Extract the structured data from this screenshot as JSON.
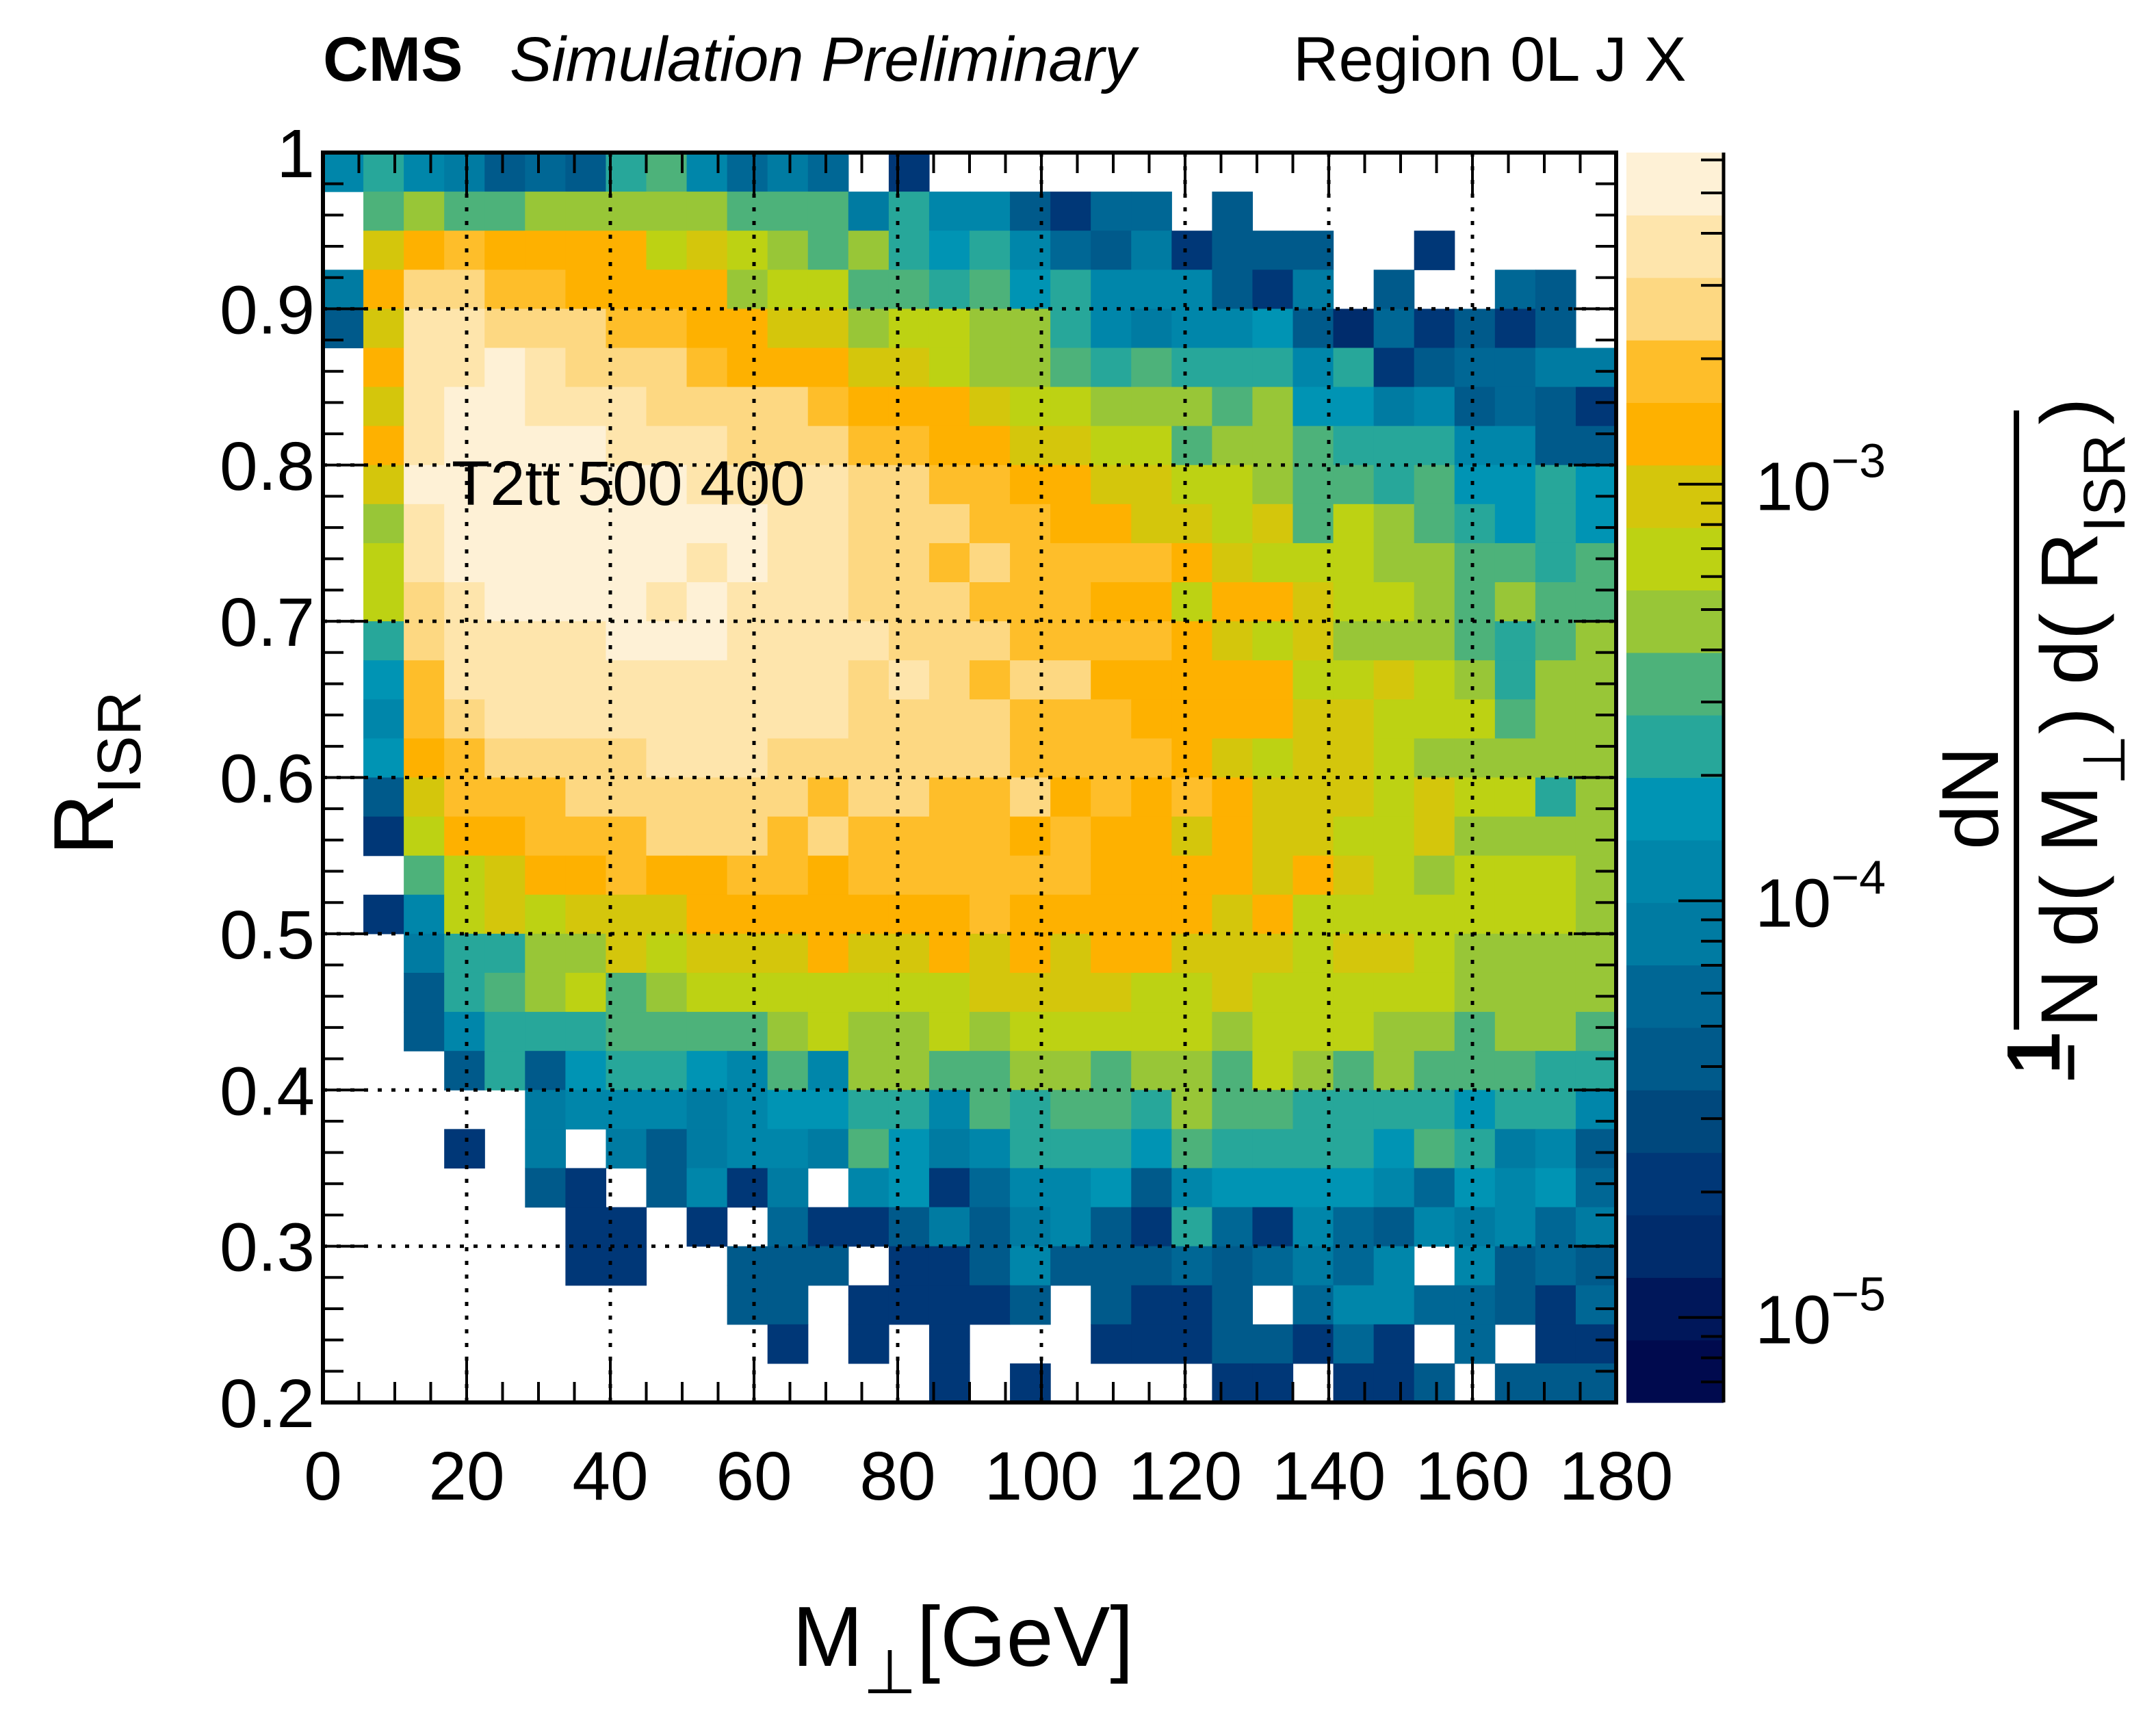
{
  "chart_data": {
    "type": "heatmap",
    "header": {
      "experiment": "CMS",
      "status": "Simulation Preliminary",
      "region": "Region 0L J X"
    },
    "annotation": "T2tt 500 400",
    "xlabel": {
      "main": "M",
      "sub": "⊥",
      "unit": "[GeV]"
    },
    "ylabel": {
      "main": "R",
      "sub": "ISR"
    },
    "zlabel": {
      "numerator": "dN",
      "one": "1",
      "denominator_parts": [
        "N d( M",
        "⊥",
        ") d( R",
        "ISR",
        ")"
      ]
    },
    "xlim": [
      0,
      180
    ],
    "ylim": [
      0.2,
      1.0
    ],
    "zlim": [
      6.25e-06,
      0.00625
    ],
    "zscale": "log",
    "x_ticks": [
      0,
      20,
      40,
      60,
      80,
      100,
      120,
      140,
      160,
      180
    ],
    "x_tick_labels": [
      "0",
      "20",
      "40",
      "60",
      "80",
      "100",
      "120",
      "140",
      "160",
      "180"
    ],
    "y_ticks": [
      0.2,
      0.3,
      0.4,
      0.5,
      0.6,
      0.7,
      0.8,
      0.9,
      1.0
    ],
    "y_tick_labels": [
      "0.2",
      "0.3",
      "0.4",
      "0.5",
      "0.6",
      "0.7",
      "0.8",
      "0.9",
      "1"
    ],
    "z_ticks": [
      1e-05,
      0.0001,
      0.001
    ],
    "z_tick_labels": [
      {
        "base": "10",
        "exp": "−5"
      },
      {
        "base": "10",
        "exp": "−4"
      },
      {
        "base": "10",
        "exp": "−3"
      }
    ],
    "grid": true,
    "grid_style": "dotted",
    "nbins_x": 32,
    "nbins_y": 32,
    "palette": [
      "#000A4E",
      "#00175A",
      "#002C6C",
      "#003777",
      "#00487D",
      "#005A8B",
      "#006795",
      "#007BA2",
      "#0086AA",
      "#0094B4",
      "#27A79A",
      "#4DB27A",
      "#98C637",
      "#BDD213",
      "#D4C60C",
      "#FEB100",
      "#FEBE2A",
      "#FDD882",
      "#FEE5AC",
      "#FEF1D6"
    ],
    "z_rows_top_to_bottom": [
      [
        0.000118,
        0.000235,
        0.000118,
        8.35e-05,
        4.18e-05,
        5.91e-05,
        4.18e-05,
        0.000235,
        0.000332,
        0.000118,
        5.91e-05,
        8.35e-05,
        5.91e-05,
        null,
        2.1e-05,
        null,
        null,
        null,
        null,
        null,
        null,
        null,
        null,
        null,
        null,
        null,
        null,
        null,
        null,
        null,
        null,
        null
      ],
      [
        null,
        0.000332,
        0.000469,
        0.000332,
        0.000332,
        0.000469,
        0.000469,
        0.000469,
        0.000469,
        0.000469,
        0.000332,
        0.000332,
        0.000332,
        8.35e-05,
        0.000235,
        0.000118,
        0.000118,
        4.18e-05,
        2.1e-05,
        5.91e-05,
        5.91e-05,
        null,
        4.18e-05,
        null,
        null,
        null,
        null,
        null,
        null,
        null,
        null,
        null
      ],
      [
        null,
        0.000937,
        0.00132,
        0.00187,
        0.00132,
        0.00132,
        0.00132,
        0.00132,
        0.000663,
        0.000937,
        0.000663,
        0.000469,
        0.000332,
        0.000469,
        0.000235,
        0.000167,
        0.000235,
        0.000118,
        5.91e-05,
        4.18e-05,
        8.35e-05,
        2.1e-05,
        4.18e-05,
        4.18e-05,
        4.18e-05,
        null,
        null,
        2.1e-05,
        null,
        null,
        null,
        null
      ],
      [
        8.35e-05,
        0.00132,
        0.00264,
        0.00264,
        0.00187,
        0.00187,
        0.00132,
        0.00132,
        0.00132,
        0.00132,
        0.000469,
        0.000663,
        0.000663,
        0.000332,
        0.000332,
        0.000235,
        0.000332,
        0.000167,
        0.000235,
        0.000118,
        0.000118,
        0.000118,
        4.18e-05,
        2.1e-05,
        8.35e-05,
        null,
        4.18e-05,
        null,
        null,
        5.91e-05,
        4.18e-05,
        null
      ],
      [
        4.18e-05,
        0.000937,
        0.00373,
        0.00373,
        0.00264,
        0.00264,
        0.00264,
        0.00187,
        0.00187,
        0.00132,
        0.00132,
        0.000937,
        0.000937,
        0.000469,
        0.000663,
        0.000663,
        0.000469,
        0.000469,
        0.000235,
        0.000118,
        8.35e-05,
        0.000118,
        0.000118,
        0.000167,
        4.18e-05,
        1.48e-05,
        5.91e-05,
        2.1e-05,
        4.18e-05,
        2.1e-05,
        4.18e-05,
        null
      ],
      [
        null,
        0.00132,
        0.00373,
        0.00373,
        0.00527,
        0.00373,
        0.00264,
        0.00264,
        0.00264,
        0.00187,
        0.00132,
        0.00132,
        0.00132,
        0.000937,
        0.000937,
        0.000663,
        0.000469,
        0.000469,
        0.000332,
        0.000235,
        0.000332,
        0.000235,
        0.000235,
        0.000235,
        0.000118,
        0.000235,
        2.1e-05,
        4.18e-05,
        5.91e-05,
        5.91e-05,
        8.35e-05,
        8.35e-05
      ],
      [
        null,
        0.000937,
        0.00373,
        0.00527,
        0.00527,
        0.00373,
        0.00373,
        0.00373,
        0.00264,
        0.00264,
        0.00264,
        0.00264,
        0.00187,
        0.00132,
        0.00132,
        0.00132,
        0.000937,
        0.000663,
        0.000663,
        0.000469,
        0.000469,
        0.000469,
        0.000332,
        0.000469,
        0.000167,
        0.000167,
        8.35e-05,
        0.000118,
        4.18e-05,
        5.91e-05,
        4.18e-05,
        2.1e-05
      ],
      [
        null,
        0.00132,
        0.00373,
        0.00527,
        0.00527,
        0.00527,
        0.00527,
        0.00373,
        0.00373,
        0.00373,
        0.00264,
        0.00264,
        0.00264,
        0.00187,
        0.00187,
        0.00132,
        0.00132,
        0.000937,
        0.000937,
        0.000663,
        0.000663,
        0.000332,
        0.000469,
        0.000469,
        0.000332,
        0.000235,
        0.000235,
        0.000235,
        0.000118,
        0.000118,
        4.18e-05,
        4.18e-05
      ],
      [
        null,
        0.000937,
        0.00527,
        0.00527,
        0.00527,
        0.00527,
        0.00527,
        0.00527,
        0.00527,
        0.00373,
        0.00373,
        0.00373,
        0.00373,
        0.00264,
        0.00264,
        0.00187,
        0.00187,
        0.00132,
        0.00132,
        0.000937,
        0.000937,
        0.000663,
        0.000663,
        0.000469,
        0.000332,
        0.000332,
        0.000235,
        0.000332,
        0.000167,
        0.000167,
        0.000235,
        0.000167
      ],
      [
        null,
        0.000469,
        0.00373,
        0.00527,
        0.00527,
        0.00527,
        0.00527,
        0.00527,
        0.00527,
        0.00527,
        0.00527,
        0.00373,
        0.00373,
        0.00264,
        0.00264,
        0.00264,
        0.00187,
        0.00187,
        0.00132,
        0.00132,
        0.000937,
        0.000937,
        0.000663,
        0.000937,
        0.000332,
        0.000663,
        0.000469,
        0.000332,
        0.000235,
        0.000167,
        0.000235,
        0.000167
      ],
      [
        null,
        0.000663,
        0.00373,
        0.00527,
        0.00527,
        0.00527,
        0.00527,
        0.00527,
        0.00527,
        0.00373,
        0.00527,
        0.00373,
        0.00373,
        0.00264,
        0.00264,
        0.00187,
        0.00264,
        0.00187,
        0.00187,
        0.00187,
        0.00187,
        0.00132,
        0.000937,
        0.000663,
        0.000663,
        0.000663,
        0.000469,
        0.000469,
        0.000332,
        0.000332,
        0.000235,
        0.000332
      ],
      [
        null,
        0.000663,
        0.00264,
        0.00373,
        0.00527,
        0.00527,
        0.00527,
        0.00527,
        0.00373,
        0.00527,
        0.00373,
        0.00373,
        0.00373,
        0.00264,
        0.00264,
        0.00264,
        0.00187,
        0.00187,
        0.00187,
        0.00132,
        0.00132,
        0.000663,
        0.00132,
        0.00132,
        0.000937,
        0.000663,
        0.000663,
        0.000469,
        0.000332,
        0.000469,
        0.000332,
        0.000332
      ],
      [
        null,
        0.000235,
        0.00264,
        0.00373,
        0.00373,
        0.00373,
        0.00373,
        0.00527,
        0.00527,
        0.00527,
        0.00373,
        0.00373,
        0.00373,
        0.00373,
        0.00264,
        0.00264,
        0.00264,
        0.00187,
        0.00187,
        0.00187,
        0.00187,
        0.00132,
        0.000937,
        0.000663,
        0.000937,
        0.000469,
        0.000469,
        0.000469,
        0.000332,
        0.000235,
        0.000332,
        0.000469
      ],
      [
        null,
        0.000167,
        0.00187,
        0.00373,
        0.00373,
        0.00373,
        0.00373,
        0.00373,
        0.00373,
        0.00373,
        0.00373,
        0.00373,
        0.00373,
        0.00264,
        0.00373,
        0.00264,
        0.00187,
        0.00264,
        0.00264,
        0.00132,
        0.00132,
        0.00132,
        0.00132,
        0.00132,
        0.000663,
        0.000663,
        0.000937,
        0.000663,
        0.000469,
        0.000235,
        0.000469,
        0.000469
      ],
      [
        null,
        0.000118,
        0.00187,
        0.00264,
        0.00373,
        0.00373,
        0.00373,
        0.00373,
        0.00373,
        0.00373,
        0.00373,
        0.00373,
        0.00373,
        0.00264,
        0.00264,
        0.00264,
        0.00264,
        0.00187,
        0.00187,
        0.00187,
        0.00132,
        0.00132,
        0.00132,
        0.00132,
        0.000937,
        0.000937,
        0.000663,
        0.000663,
        0.000663,
        0.000332,
        0.000469,
        0.000469
      ],
      [
        null,
        0.000167,
        0.00132,
        0.00187,
        0.00264,
        0.00264,
        0.00264,
        0.00264,
        0.00373,
        0.00373,
        0.00373,
        0.00264,
        0.00264,
        0.00264,
        0.00264,
        0.00264,
        0.00264,
        0.00187,
        0.00187,
        0.00187,
        0.00187,
        0.00132,
        0.000937,
        0.000663,
        0.000937,
        0.000937,
        0.000663,
        0.000469,
        0.000469,
        0.000469,
        0.000469,
        0.000469
      ],
      [
        null,
        4.18e-05,
        0.000937,
        0.00187,
        0.00187,
        0.00187,
        0.00264,
        0.00264,
        0.00264,
        0.00264,
        0.00264,
        0.00264,
        0.00187,
        0.00264,
        0.00264,
        0.00187,
        0.00187,
        0.00264,
        0.00132,
        0.00187,
        0.00132,
        0.00187,
        0.00132,
        0.000937,
        0.000937,
        0.000937,
        0.000663,
        0.000937,
        0.000663,
        0.000663,
        0.000235,
        0.000469
      ],
      [
        null,
        2.1e-05,
        0.000663,
        0.00132,
        0.00132,
        0.00187,
        0.00187,
        0.00187,
        0.00264,
        0.00264,
        0.00264,
        0.00187,
        0.00264,
        0.00187,
        0.00187,
        0.00187,
        0.00187,
        0.00132,
        0.00187,
        0.00132,
        0.00132,
        0.000937,
        0.00132,
        0.000937,
        0.000937,
        0.000663,
        0.000663,
        0.000937,
        0.000469,
        0.000469,
        0.000469,
        0.000469
      ],
      [
        null,
        null,
        0.000332,
        0.000663,
        0.000937,
        0.00132,
        0.00132,
        0.00187,
        0.00132,
        0.00132,
        0.00187,
        0.00187,
        0.00132,
        0.00187,
        0.00187,
        0.00187,
        0.00187,
        0.00187,
        0.00187,
        0.00132,
        0.00132,
        0.00132,
        0.00132,
        0.000937,
        0.00132,
        0.000937,
        0.000663,
        0.000469,
        0.000663,
        0.000663,
        0.000663,
        0.000469
      ],
      [
        null,
        2.1e-05,
        0.000118,
        0.000663,
        0.000937,
        0.000663,
        0.000937,
        0.000937,
        0.000937,
        0.00132,
        0.00132,
        0.00132,
        0.00132,
        0.00132,
        0.00132,
        0.00132,
        0.00187,
        0.00132,
        0.00132,
        0.00132,
        0.00132,
        0.00132,
        0.000937,
        0.00132,
        0.000663,
        0.000663,
        0.000663,
        0.000663,
        0.000663,
        0.000663,
        0.000663,
        0.000469
      ],
      [
        null,
        null,
        8.35e-05,
        0.000235,
        0.000235,
        0.000469,
        0.000469,
        0.000937,
        0.000663,
        0.000937,
        0.000937,
        0.000937,
        0.00132,
        0.000937,
        0.000937,
        0.00132,
        0.000937,
        0.00132,
        0.000937,
        0.00132,
        0.00132,
        0.000937,
        0.000937,
        0.000937,
        0.000663,
        0.000937,
        0.000937,
        0.000663,
        0.000469,
        0.000469,
        0.000469,
        0.000469
      ],
      [
        null,
        null,
        4.18e-05,
        0.000235,
        0.000332,
        0.000469,
        0.000663,
        0.000332,
        0.000469,
        0.000663,
        0.000663,
        0.000663,
        0.000663,
        0.000663,
        0.000663,
        0.000663,
        0.000937,
        0.000937,
        0.000937,
        0.000937,
        0.000663,
        0.000663,
        0.000937,
        0.000663,
        0.000663,
        0.000663,
        0.000663,
        0.000663,
        0.000469,
        0.000469,
        0.000469,
        0.000469
      ],
      [
        null,
        null,
        4.18e-05,
        0.000118,
        0.000235,
        0.000235,
        0.000235,
        0.000332,
        0.000332,
        0.000332,
        0.000332,
        0.000469,
        0.000663,
        0.000469,
        0.000469,
        0.000663,
        0.000469,
        0.000663,
        0.000663,
        0.000663,
        0.000663,
        0.000663,
        0.000469,
        0.000663,
        0.000663,
        0.000663,
        0.000469,
        0.000469,
        0.000332,
        0.000469,
        0.000469,
        0.000332
      ],
      [
        null,
        null,
        null,
        4.18e-05,
        0.000235,
        4.18e-05,
        0.000167,
        0.000235,
        0.000235,
        0.000167,
        0.000118,
        0.000332,
        0.000118,
        0.000469,
        0.000469,
        0.000332,
        0.000332,
        0.000469,
        0.000469,
        0.000332,
        0.000469,
        0.000469,
        0.000332,
        0.000663,
        0.000469,
        0.000332,
        0.000469,
        0.000332,
        0.000332,
        0.000332,
        0.000235,
        0.000235
      ],
      [
        null,
        null,
        null,
        null,
        null,
        8.35e-05,
        0.000118,
        0.000118,
        0.000118,
        8.35e-05,
        0.000118,
        0.000167,
        0.000167,
        0.000235,
        0.000235,
        0.000118,
        0.000332,
        0.000235,
        0.000332,
        0.000332,
        0.000235,
        0.000469,
        0.000332,
        0.000332,
        0.000235,
        0.000235,
        0.000235,
        0.000235,
        0.000167,
        0.000235,
        0.000235,
        0.000118
      ],
      [
        null,
        null,
        null,
        2.1e-05,
        null,
        8.35e-05,
        null,
        8.35e-05,
        4.18e-05,
        8.35e-05,
        0.000118,
        0.000118,
        8.35e-05,
        0.000332,
        0.000167,
        8.35e-05,
        0.000118,
        0.000235,
        0.000235,
        0.000235,
        0.000167,
        0.000332,
        0.000235,
        0.000235,
        0.000235,
        0.000235,
        0.000167,
        0.000332,
        0.000235,
        8.35e-05,
        0.000118,
        4.18e-05
      ],
      [
        null,
        null,
        null,
        null,
        null,
        4.18e-05,
        2.1e-05,
        null,
        4.18e-05,
        0.000118,
        2.1e-05,
        8.35e-05,
        null,
        0.000118,
        0.000167,
        2.1e-05,
        5.91e-05,
        0.000118,
        0.000118,
        0.000167,
        4.18e-05,
        0.000118,
        0.000167,
        0.000167,
        0.000167,
        0.000167,
        0.000118,
        5.91e-05,
        0.000167,
        0.000118,
        0.000167,
        5.91e-05
      ],
      [
        null,
        null,
        null,
        null,
        null,
        null,
        2.1e-05,
        2.1e-05,
        null,
        2.1e-05,
        null,
        5.91e-05,
        2.1e-05,
        2.1e-05,
        4.18e-05,
        8.35e-05,
        4.18e-05,
        8.35e-05,
        0.000118,
        4.18e-05,
        2.1e-05,
        0.000235,
        5.91e-05,
        2.1e-05,
        0.000118,
        5.91e-05,
        4.18e-05,
        0.000118,
        8.35e-05,
        0.000118,
        5.91e-05,
        8.35e-05
      ],
      [
        null,
        null,
        null,
        null,
        null,
        null,
        2.1e-05,
        2.1e-05,
        null,
        null,
        4.18e-05,
        4.18e-05,
        4.18e-05,
        null,
        2.1e-05,
        2.1e-05,
        4.18e-05,
        0.000118,
        4.18e-05,
        4.18e-05,
        4.18e-05,
        5.91e-05,
        4.18e-05,
        5.91e-05,
        8.35e-05,
        5.91e-05,
        0.000118,
        null,
        0.000118,
        4.18e-05,
        5.91e-05,
        4.18e-05
      ],
      [
        null,
        null,
        null,
        null,
        null,
        null,
        null,
        null,
        null,
        null,
        4.18e-05,
        4.18e-05,
        null,
        2.1e-05,
        2.1e-05,
        2.1e-05,
        2.1e-05,
        4.18e-05,
        null,
        4.18e-05,
        2.1e-05,
        2.1e-05,
        4.18e-05,
        null,
        5.91e-05,
        0.000118,
        0.000118,
        5.91e-05,
        5.91e-05,
        4.18e-05,
        2.1e-05,
        5.91e-05
      ],
      [
        null,
        null,
        null,
        null,
        null,
        null,
        null,
        null,
        null,
        null,
        null,
        2.1e-05,
        null,
        2.1e-05,
        null,
        2.1e-05,
        null,
        null,
        null,
        2.1e-05,
        2.1e-05,
        2.1e-05,
        4.18e-05,
        4.18e-05,
        2.1e-05,
        5.91e-05,
        2.1e-05,
        null,
        5.91e-05,
        null,
        2.1e-05,
        2.1e-05
      ],
      [
        null,
        null,
        null,
        null,
        null,
        null,
        null,
        null,
        null,
        null,
        null,
        null,
        null,
        null,
        null,
        2.1e-05,
        null,
        2.1e-05,
        null,
        null,
        null,
        null,
        2.1e-05,
        2.1e-05,
        null,
        2.1e-05,
        2.1e-05,
        4.18e-05,
        null,
        4.18e-05,
        4.18e-05,
        4.18e-05
      ]
    ]
  }
}
